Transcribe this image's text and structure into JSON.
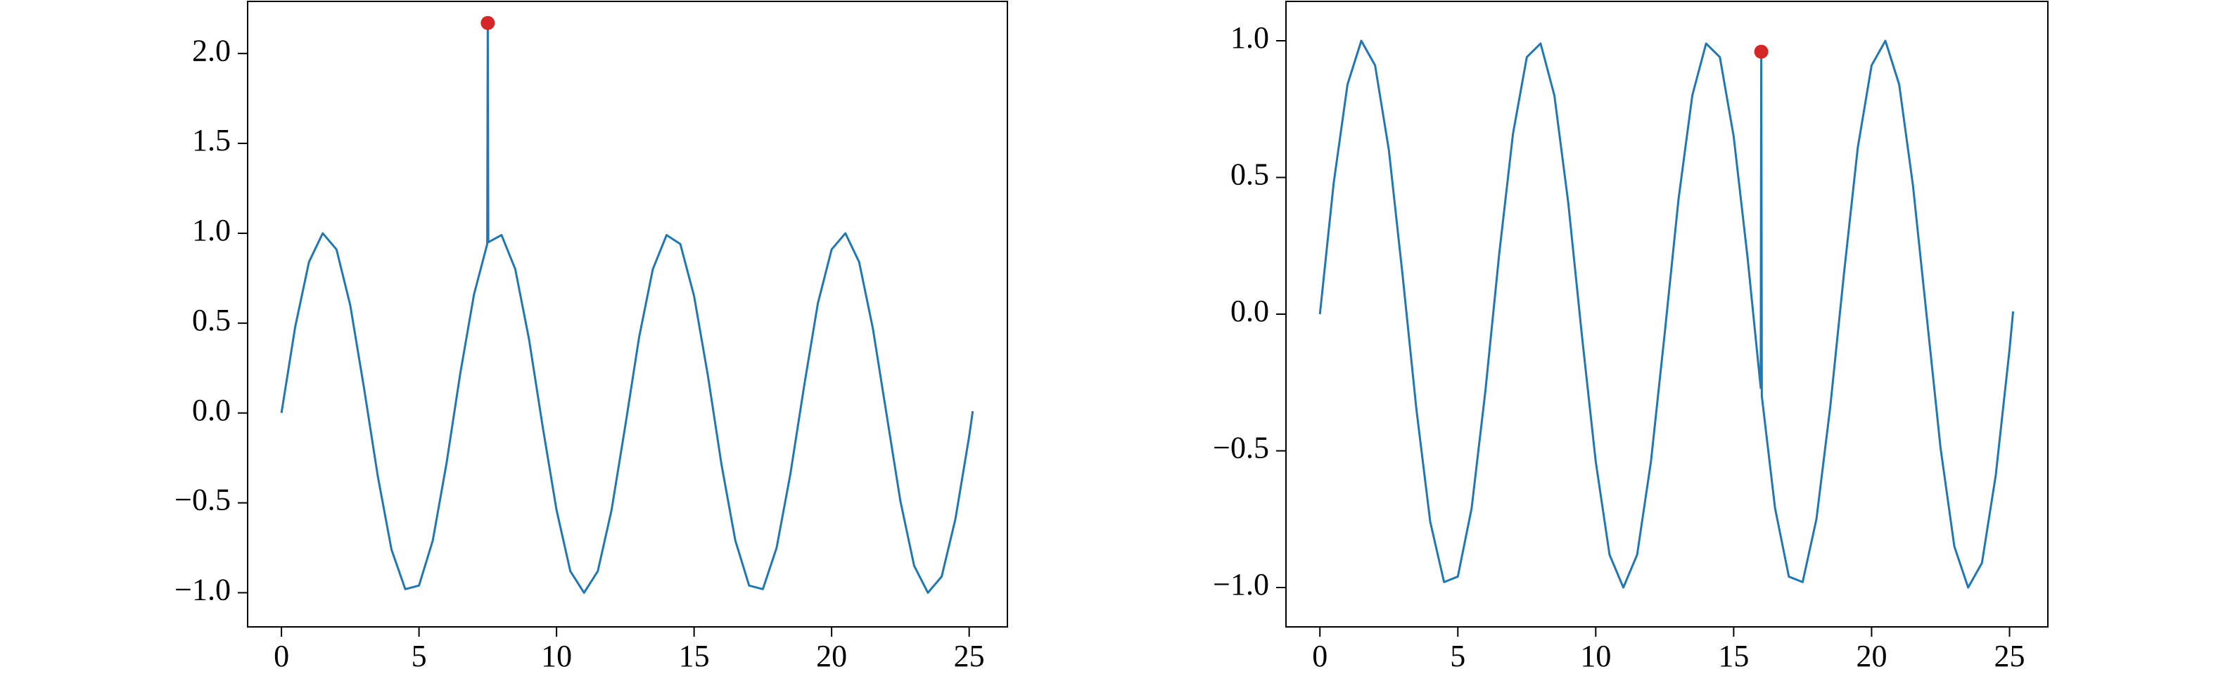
{
  "chart_data": [
    {
      "type": "line",
      "xlim": [
        -1.23,
        26.39
      ],
      "ylim": [
        -1.19,
        2.29
      ],
      "xticks": [
        0,
        5,
        10,
        15,
        20,
        25
      ],
      "yticks": [
        {
          "value": -1.0,
          "label": "−1.0"
        },
        {
          "value": -0.5,
          "label": "−0.5"
        },
        {
          "value": 0,
          "label": "0.0"
        },
        0.5,
        {
          "value": 1.0,
          "label": "1.0"
        },
        1.5,
        {
          "value": 2.0,
          "label": "2.0"
        }
      ],
      "series": [
        {
          "color": "#1f77b4",
          "x": [
            0,
            0.5,
            1,
            1.5,
            2,
            2.5,
            3,
            3.5,
            4,
            4.5,
            5,
            5.5,
            6,
            6.5,
            7,
            7.48,
            7.5,
            7.52,
            8,
            8.5,
            9,
            9.5,
            10,
            10.5,
            11,
            11.5,
            12,
            12.5,
            13,
            13.5,
            14,
            14.5,
            15,
            15.5,
            16,
            16.5,
            17,
            17.5,
            18,
            18.5,
            19,
            19.5,
            20,
            20.5,
            21,
            21.5,
            22,
            22.5,
            23,
            23.5,
            24,
            24.5,
            25,
            25.13
          ],
          "values": [
            0,
            0.48,
            0.84,
            1.0,
            0.91,
            0.6,
            0.14,
            -0.35,
            -0.76,
            -0.98,
            -0.96,
            -0.71,
            -0.28,
            0.22,
            0.66,
            0.94,
            2.17,
            0.95,
            0.99,
            0.8,
            0.41,
            -0.08,
            -0.54,
            -0.88,
            -1.0,
            -0.88,
            -0.54,
            -0.07,
            0.42,
            0.8,
            0.99,
            0.94,
            0.65,
            0.21,
            -0.29,
            -0.71,
            -0.96,
            -0.98,
            -0.75,
            -0.34,
            0.15,
            0.61,
            0.91,
            1.0,
            0.84,
            0.47,
            -0.01,
            -0.49,
            -0.85,
            -1.0,
            -0.91,
            -0.59,
            -0.13,
            0.01
          ]
        }
      ],
      "points": {
        "color": "#d62728",
        "x": [
          7.5
        ],
        "values": [
          2.17
        ]
      }
    },
    {
      "type": "line",
      "xlim": [
        -1.23,
        26.39
      ],
      "ylim": [
        -1.144,
        1.144
      ],
      "xticks": [
        0,
        5,
        10,
        15,
        20,
        25
      ],
      "yticks": [
        {
          "value": -1.0,
          "label": "−1.0"
        },
        {
          "value": -0.5,
          "label": "−0.5"
        },
        {
          "value": 0,
          "label": "0.0"
        },
        0.5,
        {
          "value": 1.0,
          "label": "1.0"
        }
      ],
      "series": [
        {
          "color": "#1f77b4",
          "x": [
            0,
            0.5,
            1,
            1.5,
            2,
            2.5,
            3,
            3.5,
            4,
            4.5,
            5,
            5.5,
            6,
            6.5,
            7,
            7.5,
            8,
            8.5,
            9,
            9.5,
            10,
            10.5,
            11,
            11.5,
            12,
            12.5,
            13,
            13.5,
            14,
            14.5,
            15,
            15.5,
            15.98,
            16,
            16.02,
            16.5,
            17,
            17.5,
            18,
            18.5,
            19,
            19.5,
            20,
            20.5,
            21,
            21.5,
            22,
            22.5,
            23,
            23.5,
            24,
            24.5,
            25,
            25.13
          ],
          "values": [
            0,
            0.48,
            0.84,
            1.0,
            0.91,
            0.6,
            0.14,
            -0.35,
            -0.76,
            -0.98,
            -0.96,
            -0.71,
            -0.28,
            0.22,
            0.66,
            0.94,
            0.99,
            0.8,
            0.41,
            -0.08,
            -0.54,
            -0.88,
            -1.0,
            -0.88,
            -0.54,
            -0.07,
            0.42,
            0.8,
            0.99,
            0.94,
            0.65,
            0.21,
            -0.27,
            0.96,
            -0.3,
            -0.71,
            -0.96,
            -0.98,
            -0.75,
            -0.34,
            0.15,
            0.61,
            0.91,
            1.0,
            0.84,
            0.47,
            -0.01,
            -0.49,
            -0.85,
            -1.0,
            -0.91,
            -0.59,
            -0.13,
            0.01
          ]
        }
      ],
      "points": {
        "color": "#d62728",
        "x": [
          16.0
        ],
        "values": [
          0.96
        ]
      }
    }
  ]
}
